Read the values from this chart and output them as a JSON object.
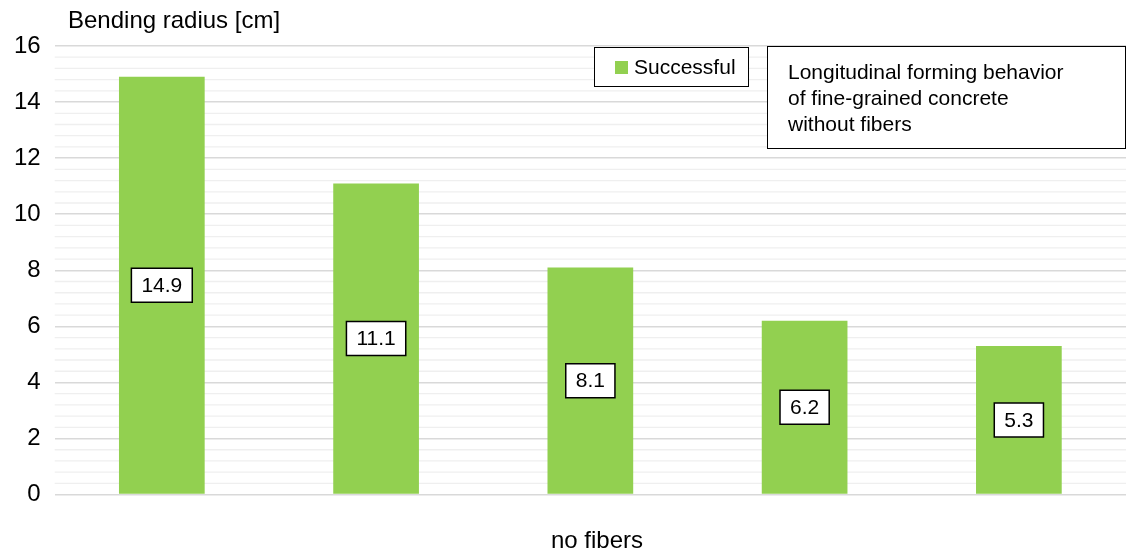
{
  "chart_data": {
    "type": "bar",
    "ylabel": "Bending radius [cm]",
    "xlabel": "no fibers",
    "categories": [
      null,
      null,
      null,
      null,
      null
    ],
    "series": [
      {
        "name": "Successful",
        "color": "#92d050",
        "values": [
          14.9,
          11.1,
          8.1,
          6.2,
          5.3
        ]
      }
    ],
    "ylim": [
      0,
      16
    ],
    "yticks": [
      0,
      2,
      4,
      6,
      8,
      10,
      12,
      14,
      16
    ],
    "grid": "y",
    "legend": "top right",
    "data_labels": true,
    "annotations": [
      "Longitudinal forming behavior\nof fine-grained concrete\nwithout fibers"
    ]
  }
}
